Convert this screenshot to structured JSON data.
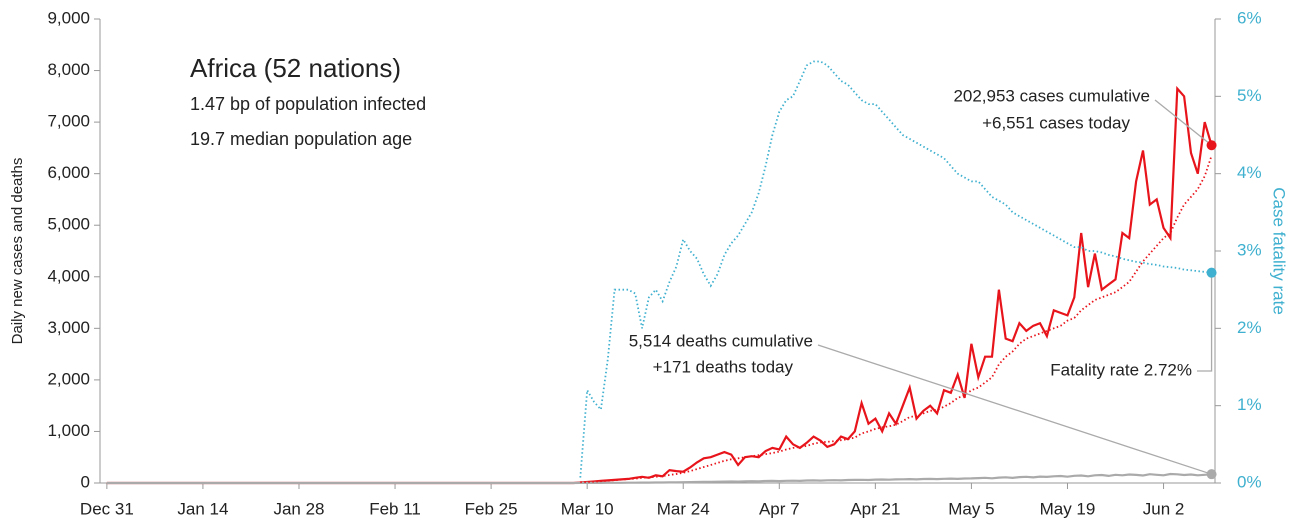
{
  "chart_data": {
    "type": "line",
    "title": "Africa (52 nations)",
    "subtitle": [
      "1.47 bp of population infected",
      "19.7 median population age"
    ],
    "y_label": "Daily new cases and deaths",
    "y2_label": "Case fatality rate",
    "xlim": [
      -1,
      161.5
    ],
    "xticks": [
      {
        "value": 0,
        "label": "Dec 31"
      },
      {
        "value": 14,
        "label": "Jan 14"
      },
      {
        "value": 28,
        "label": "Jan 28"
      },
      {
        "value": 42,
        "label": "Feb 11"
      },
      {
        "value": 56,
        "label": "Feb 25"
      },
      {
        "value": 70,
        "label": "Mar 10"
      },
      {
        "value": 84,
        "label": "Mar 24"
      },
      {
        "value": 98,
        "label": "Apr 7"
      },
      {
        "value": 112,
        "label": "Apr 21"
      },
      {
        "value": 126,
        "label": "May 5"
      },
      {
        "value": 140,
        "label": "May 19"
      },
      {
        "value": 154,
        "label": "Jun 2"
      }
    ],
    "ylim": [
      0,
      9000
    ],
    "yticks": [
      0,
      {
        "value": 1000,
        "label": "1,000"
      },
      {
        "value": 2000,
        "label": "2,000"
      },
      {
        "value": 3000,
        "label": "3,000"
      },
      {
        "value": 4000,
        "label": "4,000"
      },
      {
        "value": 5000,
        "label": "5,000"
      },
      {
        "value": 6000,
        "label": "6,000"
      },
      {
        "value": 7000,
        "label": "7,000"
      },
      {
        "value": 8000,
        "label": "8,000"
      },
      {
        "value": 9000,
        "label": "9,000"
      }
    ],
    "y2lim": [
      0,
      6
    ],
    "y2ticks": [
      {
        "value": 0,
        "label": "0%"
      },
      {
        "value": 1,
        "label": "1%"
      },
      {
        "value": 2,
        "label": "2%"
      },
      {
        "value": 3,
        "label": "3%"
      },
      {
        "value": 4,
        "label": "4%"
      },
      {
        "value": 5,
        "label": "5%"
      },
      {
        "value": 6,
        "label": "6%"
      }
    ],
    "y2_color": "#3fb0cf",
    "x": [
      0,
      68,
      69,
      70,
      71,
      72,
      73,
      74,
      75,
      76,
      77,
      78,
      79,
      80,
      81,
      82,
      83,
      84,
      85,
      86,
      87,
      88,
      89,
      90,
      91,
      92,
      93,
      94,
      95,
      96,
      97,
      98,
      99,
      100,
      101,
      102,
      103,
      104,
      105,
      106,
      107,
      108,
      109,
      110,
      111,
      112,
      113,
      114,
      115,
      116,
      117,
      118,
      119,
      120,
      121,
      122,
      123,
      124,
      125,
      126,
      127,
      128,
      129,
      130,
      131,
      132,
      133,
      134,
      135,
      136,
      137,
      138,
      139,
      140,
      141,
      142,
      143,
      144,
      145,
      146,
      147,
      148,
      149,
      150,
      151,
      152,
      153,
      154,
      155,
      156,
      157,
      158,
      159,
      160,
      161
    ],
    "series": [
      {
        "color": "#e8141b",
        "style": "solid",
        "endpoint": true,
        "values": [
          0,
          0,
          10,
          20,
          30,
          40,
          50,
          60,
          70,
          80,
          100,
          120,
          100,
          150,
          130,
          250,
          230,
          220,
          300,
          400,
          480,
          500,
          550,
          600,
          550,
          350,
          500,
          520,
          500,
          620,
          680,
          650,
          900,
          750,
          680,
          780,
          900,
          820,
          700,
          750,
          900,
          850,
          1000,
          1550,
          1150,
          1250,
          1000,
          1350,
          1150,
          1500,
          1850,
          1250,
          1400,
          1500,
          1350,
          1800,
          1750,
          2100,
          1650,
          2700,
          2050,
          2450,
          2450,
          3750,
          2800,
          2750,
          3100,
          2950,
          3050,
          3100,
          2850,
          3350,
          3300,
          3250,
          3600,
          4850,
          3800,
          4450,
          3750,
          3850,
          3950,
          4850,
          4750,
          5850,
          6450,
          5400,
          5500,
          4950,
          4750,
          7650,
          7500,
          6400,
          6000,
          7000,
          6551
        ]
      },
      {
        "color": "#aaaaaa",
        "style": "solid",
        "endpoint": true,
        "values": [
          0,
          0,
          1,
          1,
          2,
          2,
          3,
          3,
          4,
          5,
          6,
          7,
          8,
          9,
          10,
          12,
          14,
          15,
          17,
          19,
          21,
          23,
          25,
          27,
          30,
          28,
          32,
          35,
          33,
          38,
          40,
          36,
          42,
          45,
          40,
          48,
          50,
          46,
          52,
          55,
          50,
          58,
          60,
          62,
          58,
          65,
          68,
          64,
          70,
          72,
          75,
          70,
          78,
          80,
          76,
          82,
          85,
          80,
          88,
          90,
          95,
          100,
          92,
          105,
          110,
          98,
          115,
          120,
          108,
          125,
          118,
          130,
          135,
          122,
          140,
          145,
          130,
          150,
          155,
          138,
          160,
          150,
          165,
          158,
          145,
          170,
          160,
          150,
          175,
          168,
          155,
          165,
          150,
          160,
          171
        ]
      },
      {
        "color": "#3fb0cf",
        "style": "dotted",
        "axis": "y2",
        "endpoint": true,
        "values": [
          null,
          null,
          0.07,
          1.2,
          1.05,
          0.95,
          1.6,
          2.5,
          2.5,
          2.5,
          2.45,
          2.0,
          2.4,
          2.5,
          2.35,
          2.6,
          2.8,
          3.15,
          3.0,
          2.9,
          2.7,
          2.55,
          2.7,
          2.95,
          3.1,
          3.2,
          3.35,
          3.5,
          3.75,
          4.1,
          4.5,
          4.8,
          4.95,
          5.0,
          5.2,
          5.4,
          5.45,
          5.45,
          5.4,
          5.3,
          5.2,
          5.15,
          5.05,
          4.95,
          4.9,
          4.9,
          4.8,
          4.7,
          4.6,
          4.5,
          4.45,
          4.4,
          4.35,
          4.3,
          4.25,
          4.2,
          4.1,
          4.0,
          3.95,
          3.9,
          3.9,
          3.8,
          3.7,
          3.65,
          3.6,
          3.5,
          3.45,
          3.4,
          3.35,
          3.3,
          3.25,
          3.2,
          3.15,
          3.1,
          3.05,
          3.05,
          3.0,
          3.0,
          2.98,
          2.95,
          2.93,
          2.9,
          2.88,
          2.86,
          2.85,
          2.83,
          2.82,
          2.8,
          2.79,
          2.78,
          2.76,
          2.75,
          2.74,
          2.73,
          2.72
        ]
      },
      {
        "color": "#e8141b",
        "style": "dotted",
        "endpoint": false,
        "values": [
          null,
          null,
          15,
          20,
          25,
          35,
          45,
          55,
          65,
          75,
          85,
          100,
          110,
          120,
          135,
          155,
          175,
          200,
          230,
          270,
          310,
          350,
          390,
          430,
          460,
          480,
          500,
          520,
          540,
          560,
          580,
          610,
          650,
          680,
          700,
          720,
          760,
          790,
          800,
          810,
          830,
          850,
          880,
          960,
          1000,
          1050,
          1080,
          1100,
          1130,
          1200,
          1280,
          1300,
          1350,
          1400,
          1420,
          1480,
          1550,
          1650,
          1700,
          1800,
          1850,
          1950,
          2050,
          2300,
          2450,
          2550,
          2700,
          2800,
          2850,
          2900,
          2950,
          3000,
          3050,
          3150,
          3200,
          3350,
          3450,
          3550,
          3600,
          3650,
          3700,
          3800,
          3900,
          4100,
          4300,
          4450,
          4600,
          4750,
          4850,
          5150,
          5400,
          5550,
          5700,
          5950,
          6350
        ]
      }
    ],
    "annotations": [
      "202,953 cases cumulative",
      "+6,551 cases today",
      "5,514 deaths cumulative",
      "+171 deaths today",
      "Fatality rate 2.72%"
    ]
  }
}
